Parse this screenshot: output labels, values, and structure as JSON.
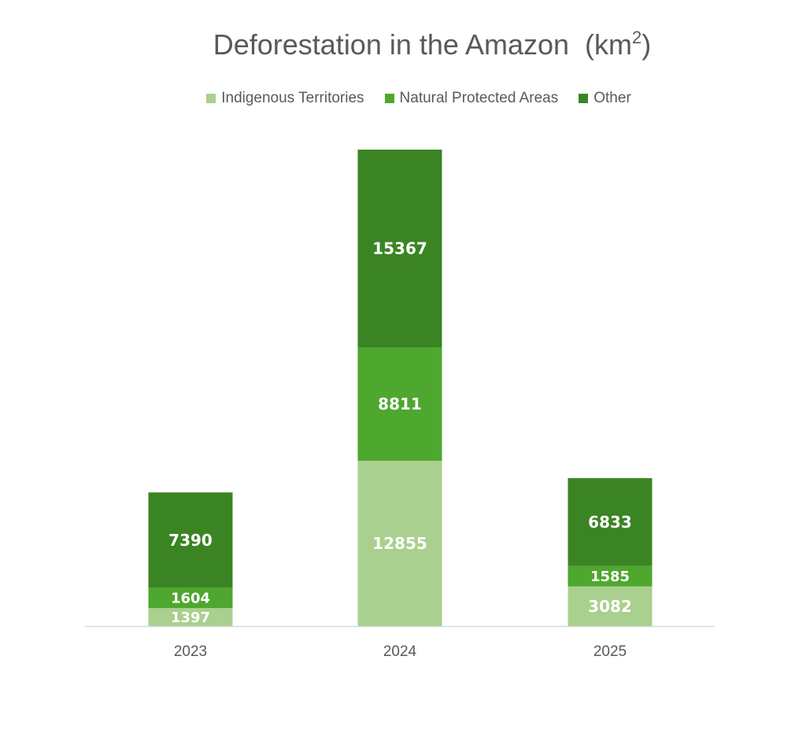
{
  "chart_data": {
    "type": "bar",
    "stacked": true,
    "title": "Deforestation in the Amazon",
    "title_unit": "(km",
    "title_unit_sup": "2",
    "title_unit_close": ")",
    "categories": [
      "2023",
      "2024",
      "2025"
    ],
    "series": [
      {
        "name": "Indigenous Territories",
        "color": "#a9d08e",
        "values": [
          1397,
          12855,
          3082
        ]
      },
      {
        "name": "Natural Protected Areas",
        "color": "#4ea72e",
        "values": [
          1604,
          8811,
          1585
        ]
      },
      {
        "name": "Other",
        "color": "#3b8424",
        "values": [
          7390,
          15367,
          6833
        ]
      }
    ],
    "ylim": [
      0,
      37033
    ],
    "grid": false,
    "legend_position": "top"
  },
  "colors": {
    "axis": "#d9d9d9",
    "text": "#595959"
  }
}
